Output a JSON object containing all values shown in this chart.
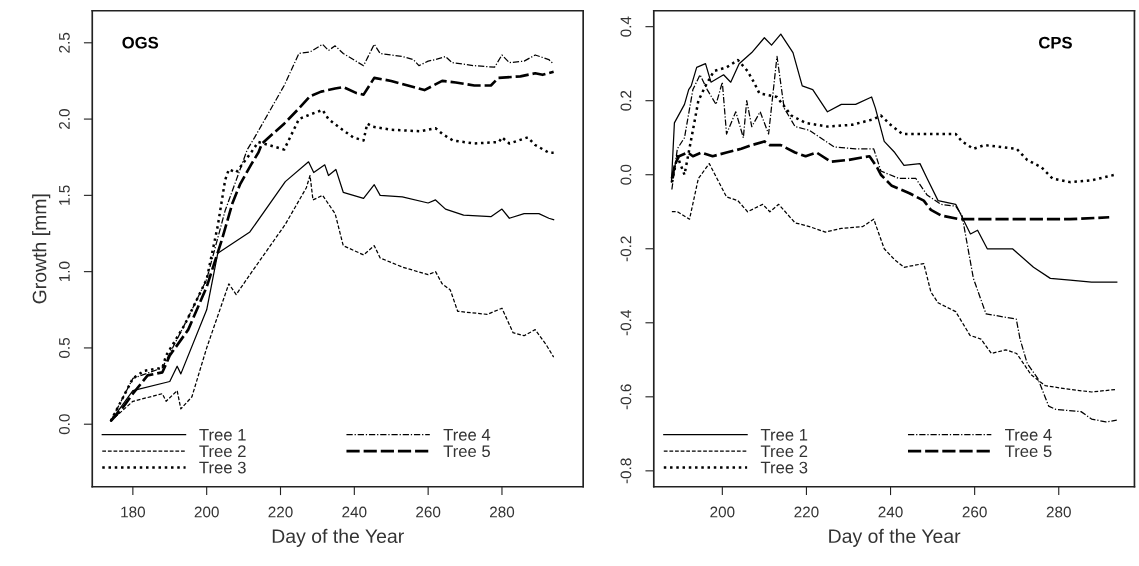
{
  "chart_data": [
    {
      "type": "line",
      "xlabel": "Day of the Year",
      "ylabel": "Growth [mm]",
      "annotations": [
        "OGS"
      ],
      "xlim": [
        169,
        302
      ],
      "ylim": [
        -0.41,
        2.71
      ],
      "xticks": [
        180,
        200,
        220,
        240,
        260,
        280
      ],
      "yticks": [
        {
          "value": 0,
          "label": "0.0"
        },
        {
          "value": 0.5,
          "label": "0.5"
        },
        {
          "value": 1,
          "label": "1.0"
        },
        {
          "value": 1.5,
          "label": "1.5"
        },
        {
          "value": 2,
          "label": "2.0"
        },
        {
          "value": 2.5,
          "label": "2.5"
        }
      ],
      "grid": false,
      "legend": "bottom left",
      "series": [
        {
          "name": "Tree 1",
          "color": "#000000",
          "line_style": "solid",
          "x": [
            174,
            180,
            190,
            192,
            193,
            200,
            203,
            211.7,
            221.3,
            227.6,
            229,
            232,
            233,
            235,
            237,
            242.5,
            245.4,
            247,
            253,
            260,
            262,
            264.7,
            269.6,
            277,
            280,
            282,
            286,
            290,
            292.7,
            294
          ],
          "values": [
            0.02,
            0.22,
            0.28,
            0.38,
            0.33,
            0.75,
            1.12,
            1.26,
            1.59,
            1.72,
            1.65,
            1.7,
            1.63,
            1.67,
            1.52,
            1.48,
            1.57,
            1.5,
            1.49,
            1.45,
            1.47,
            1.41,
            1.37,
            1.36,
            1.41,
            1.35,
            1.38,
            1.38,
            1.35,
            1.34
          ]
        },
        {
          "name": "Tree 2",
          "color": "#000000",
          "line_style": "dashed",
          "x": [
            174,
            180,
            188,
            189,
            192,
            193,
            196,
            200,
            206,
            208,
            211.7,
            221.3,
            227,
            228,
            228.8,
            231.4,
            234.8,
            237,
            242.5,
            245.4,
            247,
            253,
            260,
            262,
            263.8,
            266,
            268,
            276,
            280,
            283,
            286,
            289,
            292,
            294
          ],
          "values": [
            0.02,
            0.15,
            0.2,
            0.15,
            0.22,
            0.1,
            0.18,
            0.5,
            0.92,
            0.85,
            0.98,
            1.31,
            1.55,
            1.63,
            1.47,
            1.5,
            1.38,
            1.17,
            1.11,
            1.17,
            1.09,
            1.03,
            0.98,
            1.0,
            0.92,
            0.88,
            0.74,
            0.72,
            0.76,
            0.6,
            0.58,
            0.62,
            0.52,
            0.44
          ]
        },
        {
          "name": "Tree 3",
          "color": "#000000",
          "line_style": "dotted",
          "x": [
            174,
            180,
            183,
            188,
            189,
            194,
            200,
            203,
            205,
            206,
            208,
            212,
            214,
            221,
            225,
            228,
            231.4,
            233,
            236.8,
            239.7,
            242.5,
            243.5,
            245,
            250,
            258,
            262,
            264,
            266.7,
            272.5,
            279.2,
            280,
            282,
            287,
            289,
            292.7,
            294
          ],
          "values": [
            0.02,
            0.3,
            0.35,
            0.37,
            0.45,
            0.65,
            0.95,
            1.3,
            1.6,
            1.67,
            1.65,
            1.78,
            1.85,
            1.8,
            2.0,
            2.03,
            2.06,
            2.0,
            1.93,
            1.88,
            1.86,
            1.97,
            1.95,
            1.93,
            1.92,
            1.94,
            1.9,
            1.86,
            1.84,
            1.85,
            1.88,
            1.84,
            1.88,
            1.83,
            1.78,
            1.78
          ]
        },
        {
          "name": "Tree 4",
          "color": "#000000",
          "line_style": "dashdot",
          "x": [
            174,
            180,
            188,
            195,
            200,
            205,
            208,
            211,
            213,
            221,
            225,
            228,
            231.4,
            233,
            234.8,
            237,
            242.5,
            245.4,
            247,
            253,
            256,
            257.5,
            260,
            262,
            264.7,
            266.5,
            272.5,
            278,
            280,
            282,
            286,
            289,
            292.7,
            294
          ],
          "values": [
            0.02,
            0.3,
            0.37,
            0.7,
            0.95,
            1.4,
            1.6,
            1.8,
            1.88,
            2.22,
            2.43,
            2.44,
            2.49,
            2.45,
            2.48,
            2.43,
            2.35,
            2.49,
            2.43,
            2.41,
            2.39,
            2.35,
            2.38,
            2.39,
            2.41,
            2.37,
            2.35,
            2.34,
            2.42,
            2.37,
            2.38,
            2.42,
            2.39,
            2.36
          ]
        },
        {
          "name": "Tree 5",
          "color": "#000000",
          "line_style": "longdash",
          "x": [
            174,
            177,
            180,
            184,
            188,
            190,
            195,
            200,
            204,
            207,
            209,
            212,
            214,
            215,
            221,
            225,
            228,
            231,
            234.8,
            237,
            240.6,
            242.5,
            245.4,
            250,
            256,
            259,
            263.8,
            267.5,
            272.5,
            277,
            279,
            285,
            289,
            291,
            294
          ],
          "values": [
            0.02,
            0.1,
            0.2,
            0.32,
            0.34,
            0.45,
            0.62,
            0.9,
            1.2,
            1.45,
            1.57,
            1.7,
            1.78,
            1.84,
            1.97,
            2.07,
            2.15,
            2.18,
            2.2,
            2.21,
            2.17,
            2.16,
            2.27,
            2.25,
            2.21,
            2.19,
            2.25,
            2.24,
            2.22,
            2.22,
            2.27,
            2.28,
            2.3,
            2.29,
            2.31
          ]
        }
      ]
    },
    {
      "type": "line",
      "xlabel": "Day of the Year",
      "annotations": [
        "CPS"
      ],
      "xlim": [
        183.7,
        298
      ],
      "ylim": [
        -0.843,
        0.443
      ],
      "xticks": [
        200,
        220,
        240,
        260,
        280
      ],
      "yticks": [
        {
          "value": -0.8,
          "label": "-0.8"
        },
        {
          "value": -0.6,
          "label": "-0.6"
        },
        {
          "value": -0.4,
          "label": "-0.4"
        },
        {
          "value": -0.2,
          "label": "-0.2"
        },
        {
          "value": 0,
          "label": "0.0"
        },
        {
          "value": 0.2,
          "label": "0.2"
        },
        {
          "value": 0.4,
          "label": "0.4"
        }
      ],
      "grid": false,
      "legend": "bottom left",
      "series": [
        {
          "name": "Tree 1",
          "color": "#000000",
          "line_style": "solid",
          "x": [
            187.9,
            188.6,
            191,
            192,
            192.6,
            193.9,
            196,
            197.3,
            200.3,
            202,
            204,
            207,
            210,
            211.7,
            213.9,
            216.8,
            219,
            221.5,
            225,
            228.3,
            231.7,
            235.5,
            236.4,
            238.5,
            241,
            243.2,
            247,
            248.7,
            251.3,
            255.5,
            259,
            260.7,
            263,
            269,
            274,
            278,
            282.7,
            287.8,
            293.8
          ],
          "values": [
            -0.02,
            0.14,
            0.19,
            0.23,
            0.24,
            0.29,
            0.3,
            0.25,
            0.27,
            0.25,
            0.3,
            0.33,
            0.37,
            0.35,
            0.38,
            0.33,
            0.24,
            0.23,
            0.17,
            0.19,
            0.19,
            0.21,
            0.18,
            0.09,
            0.06,
            0.025,
            0.03,
            -0.01,
            -0.07,
            -0.08,
            -0.16,
            -0.15,
            -0.2,
            -0.2,
            -0.25,
            -0.28,
            -0.285,
            -0.29,
            -0.29
          ]
        },
        {
          "name": "Tree 2",
          "color": "#000000",
          "line_style": "dashed",
          "x": [
            188,
            189.3,
            192.2,
            194.3,
            196.9,
            201,
            203.7,
            206,
            209.6,
            211.3,
            213.4,
            217.3,
            220.7,
            224.5,
            228.3,
            233.4,
            236,
            238.5,
            241,
            243.2,
            247.9,
            249.6,
            251.3,
            255.5,
            258.9,
            261.5,
            264,
            267.4,
            270,
            273.4,
            276.8,
            282.7,
            287.8,
            293.8
          ],
          "values": [
            -0.1,
            -0.1,
            -0.12,
            -0.01,
            0.03,
            -0.06,
            -0.07,
            -0.1,
            -0.08,
            -0.1,
            -0.08,
            -0.13,
            -0.14,
            -0.155,
            -0.145,
            -0.14,
            -0.12,
            -0.2,
            -0.23,
            -0.25,
            -0.24,
            -0.317,
            -0.346,
            -0.37,
            -0.434,
            -0.444,
            -0.483,
            -0.473,
            -0.483,
            -0.54,
            -0.57,
            -0.58,
            -0.587,
            -0.58
          ]
        },
        {
          "name": "Tree 3",
          "color": "#000000",
          "line_style": "dotted",
          "x": [
            188,
            189.3,
            191,
            193,
            194.3,
            196,
            198,
            201,
            203.7,
            206,
            207.5,
            208.8,
            213,
            216.4,
            219.8,
            225,
            230.9,
            236,
            237.7,
            240,
            242.8,
            255.5,
            257,
            259.7,
            262.3,
            270,
            272.5,
            275.9,
            278.5,
            282.7,
            287.8,
            293.4
          ],
          "values": [
            -0.02,
            0.05,
            0.0,
            0.12,
            0.2,
            0.24,
            0.28,
            0.29,
            0.31,
            0.28,
            0.25,
            0.22,
            0.21,
            0.16,
            0.14,
            0.13,
            0.135,
            0.15,
            0.16,
            0.135,
            0.11,
            0.11,
            0.09,
            0.07,
            0.08,
            0.07,
            0.04,
            0.02,
            -0.01,
            -0.02,
            -0.015,
            0.0
          ]
        },
        {
          "name": "Tree 4",
          "color": "#000000",
          "line_style": "dashdot",
          "x": [
            188,
            189.3,
            191,
            193,
            194.7,
            196.4,
            198.5,
            200,
            201,
            203.2,
            205,
            205.8,
            207,
            209,
            211,
            213,
            214.7,
            217.3,
            220.7,
            226.6,
            231.7,
            236,
            237.7,
            242,
            246,
            248.7,
            252,
            255.5,
            257,
            259.7,
            262.7,
            269.9,
            270.8,
            272.5,
            275,
            277.6,
            279.3,
            285.3,
            287.8,
            291.2,
            293.8
          ],
          "values": [
            -0.04,
            0.07,
            0.1,
            0.23,
            0.27,
            0.23,
            0.19,
            0.25,
            0.11,
            0.17,
            0.1,
            0.2,
            0.13,
            0.17,
            0.11,
            0.32,
            0.18,
            0.13,
            0.12,
            0.075,
            0.07,
            0.07,
            0.01,
            -0.01,
            -0.01,
            -0.055,
            -0.08,
            -0.085,
            -0.11,
            -0.28,
            -0.376,
            -0.39,
            -0.444,
            -0.51,
            -0.55,
            -0.625,
            -0.634,
            -0.64,
            -0.66,
            -0.668,
            -0.663
          ]
        },
        {
          "name": "Tree 5",
          "color": "#000000",
          "line_style": "longdash",
          "x": [
            188,
            188.8,
            189.7,
            191.8,
            193,
            195,
            197.7,
            201,
            204.5,
            207,
            210,
            211.3,
            213.9,
            217.3,
            219.8,
            222.4,
            225.8,
            230,
            235,
            236.8,
            237.7,
            240.3,
            244.5,
            247.9,
            249.6,
            252,
            256.4,
            265.7,
            282.7,
            292
          ],
          "values": [
            -0.01,
            0.03,
            0.05,
            0.06,
            0.05,
            0.06,
            0.05,
            0.06,
            0.07,
            0.08,
            0.09,
            0.08,
            0.08,
            0.06,
            0.05,
            0.06,
            0.035,
            0.04,
            0.05,
            0.02,
            0.0,
            -0.03,
            -0.05,
            -0.07,
            -0.095,
            -0.11,
            -0.12,
            -0.12,
            -0.12,
            -0.115
          ]
        }
      ]
    }
  ]
}
